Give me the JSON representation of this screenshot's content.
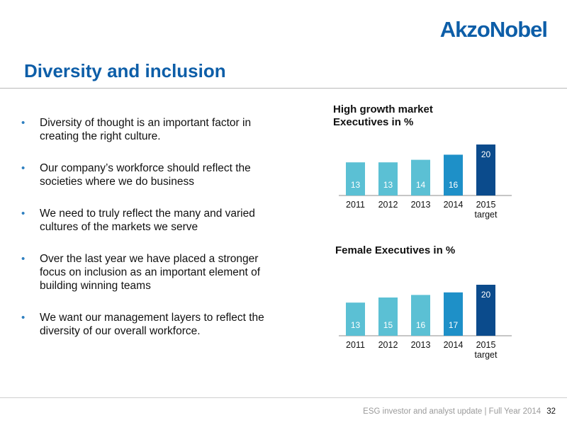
{
  "brand": {
    "logo_part1": "Akzo",
    "logo_part2": "Nobel",
    "color_primary": "#0d5ea8",
    "color_dark": "#0b4b8c"
  },
  "slide": {
    "title": "Diversity and inclusion",
    "bullets": [
      "Diversity of thought is an important factor in creating the right culture.",
      "Our company’s workforce should reflect the societies where we do business",
      "We need to truly reflect the many and varied cultures of the markets we serve",
      "Over the last year we have placed a stronger focus on inclusion as an important element of building winning teams",
      "We want our management layers to reflect the diversity of our overall workforce."
    ],
    "bullet_symbol": "•",
    "bullet_color": "#2e7fc0"
  },
  "chart_data": [
    {
      "type": "bar",
      "title_lines": [
        "High growth market",
        "Executives in %"
      ],
      "categories": [
        "2011",
        "2012",
        "2013",
        "2014",
        "2015"
      ],
      "category_sublabels": [
        "",
        "",
        "",
        "",
        "target"
      ],
      "values": [
        13,
        13,
        14,
        16,
        20
      ],
      "bar_colors": [
        "#5bc0d4",
        "#5bc0d4",
        "#5bc0d4",
        "#1e90c8",
        "#0b4b8c"
      ],
      "label_colors": [
        "#ffffff",
        "#ffffff",
        "#ffffff",
        "#ffffff",
        "#ffffff"
      ],
      "grid": false,
      "legend": "none"
    },
    {
      "type": "bar",
      "title_lines": [
        "Female Executives in %"
      ],
      "categories": [
        "2011",
        "2012",
        "2013",
        "2014",
        "2015"
      ],
      "category_sublabels": [
        "",
        "",
        "",
        "",
        "target"
      ],
      "values": [
        13,
        15,
        16,
        17,
        20
      ],
      "bar_colors": [
        "#5bc0d4",
        "#5bc0d4",
        "#5bc0d4",
        "#1e90c8",
        "#0b4b8c"
      ],
      "label_colors": [
        "#ffffff",
        "#ffffff",
        "#ffffff",
        "#ffffff",
        "#ffffff"
      ],
      "grid": false,
      "legend": "none"
    }
  ],
  "footer": {
    "text": "ESG investor and analyst update | Full Year 2014",
    "page_number": "32"
  }
}
